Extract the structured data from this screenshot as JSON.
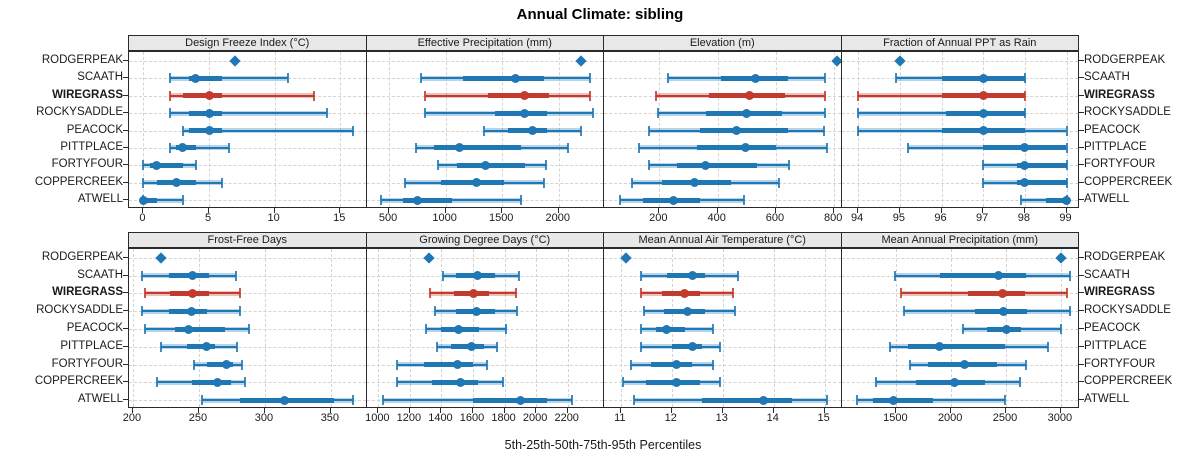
{
  "title": "Annual Climate: sibling",
  "caption": "5th-25th-50th-75th-95th Percentiles",
  "colors": {
    "site": "#1f77b4",
    "highlight": "#c23b2e",
    "strip_bg": "#e8e8e8",
    "grid": "#d4d4d4",
    "border": "#2a2a2a"
  },
  "chart_data": {
    "type": "dotplot",
    "layout": "2 rows x 4 cols lattice of percentile whisker plots",
    "title": "Annual Climate: sibling",
    "caption": "5th-25th-50th-75th-95th Percentiles",
    "legend_position": "none",
    "grid": "dashed",
    "sites": [
      "RODGERPEAK",
      "SCAATH",
      "WIREGRASS",
      "ROCKYSADDLE",
      "PEACOCK",
      "PITTPLACE",
      "FORTYFOUR",
      "COPPERCREEK",
      "ATWELL"
    ],
    "highlight_site": "WIREGRASS",
    "single_point_site": "RODGERPEAK",
    "value_semantics": "arrays of 5 numbers are [p5,p25,p50,p75,p95]; single-element arrays are a lone observed value drawn as a diamond",
    "panels": [
      {
        "title": "Design Freeze Index (°C)",
        "ticks": [
          0,
          5,
          10,
          15
        ],
        "xlim": [
          -1.1,
          17
        ],
        "values": [
          [
            7
          ],
          [
            2,
            3.5,
            4,
            6,
            11
          ],
          [
            2,
            3,
            5,
            6,
            13
          ],
          [
            2,
            3.5,
            5,
            6,
            14
          ],
          [
            3,
            3.5,
            5,
            6,
            16
          ],
          [
            2,
            2.5,
            3,
            4,
            6.5
          ],
          [
            0,
            0.5,
            1,
            3,
            4
          ],
          [
            0,
            1,
            2.5,
            4,
            6
          ],
          [
            0,
            0,
            0,
            1,
            3
          ]
        ]
      },
      {
        "title": "Effective Precipitation (mm)",
        "ticks": [
          500,
          1000,
          1500,
          2000
        ],
        "xlim": [
          300,
          2400
        ],
        "values": [
          [
            2200
          ],
          [
            780,
            1150,
            1620,
            1870,
            2280
          ],
          [
            820,
            1370,
            1700,
            1910,
            2280
          ],
          [
            820,
            1440,
            1700,
            1900,
            2300
          ],
          [
            1340,
            1550,
            1770,
            1900,
            2200
          ],
          [
            740,
            900,
            1120,
            1670,
            2080
          ],
          [
            930,
            1100,
            1350,
            1700,
            1890
          ],
          [
            640,
            960,
            1270,
            1520,
            1870
          ],
          [
            430,
            620,
            750,
            1060,
            1670
          ]
        ]
      },
      {
        "title": "Elevation (m)",
        "ticks": [
          200,
          400,
          600,
          800
        ],
        "xlim": [
          10,
          825
        ],
        "values": [
          [
            810
          ],
          [
            230,
            410,
            530,
            640,
            770
          ],
          [
            190,
            370,
            510,
            630,
            770
          ],
          [
            195,
            360,
            500,
            620,
            770
          ],
          [
            165,
            340,
            465,
            640,
            765
          ],
          [
            130,
            330,
            495,
            600,
            775
          ],
          [
            165,
            260,
            360,
            535,
            645
          ],
          [
            105,
            210,
            320,
            445,
            610
          ],
          [
            65,
            145,
            250,
            340,
            490
          ]
        ]
      },
      {
        "title": "Fraction of Annual PPT as Rain",
        "ticks": [
          94,
          95,
          96,
          97,
          98,
          99
        ],
        "xlim": [
          93.6,
          99.3
        ],
        "values": [
          [
            95
          ],
          [
            94.9,
            96,
            97,
            98,
            98
          ],
          [
            94,
            96,
            97,
            98,
            98
          ],
          [
            94,
            96.1,
            97,
            98,
            98
          ],
          [
            94,
            96,
            97,
            98,
            99
          ],
          [
            95.2,
            97,
            98,
            99,
            99
          ],
          [
            97,
            97.8,
            98,
            99,
            99
          ],
          [
            97,
            97.8,
            98,
            99,
            99
          ],
          [
            97.9,
            98.5,
            99,
            99,
            99
          ]
        ]
      },
      {
        "title": "Frost-Free Days",
        "ticks": [
          200,
          250,
          300,
          350
        ],
        "xlim": [
          197,
          377
        ],
        "values": [
          [
            221
          ],
          [
            207,
            227,
            245,
            258,
            278
          ],
          [
            209,
            228,
            245,
            258,
            281
          ],
          [
            207,
            227,
            244,
            256,
            281
          ],
          [
            209,
            232,
            242,
            270,
            288
          ],
          [
            221,
            241,
            256,
            262,
            279
          ],
          [
            246,
            256,
            271,
            276,
            283
          ],
          [
            218,
            245,
            264,
            274,
            285
          ],
          [
            252,
            281,
            315,
            352,
            367
          ]
        ]
      },
      {
        "title": "Growing Degree Days (°C)",
        "ticks": [
          1000,
          1200,
          1400,
          1600,
          1800,
          2000,
          2200
        ],
        "xlim": [
          925,
          2430
        ],
        "values": [
          [
            1320
          ],
          [
            1410,
            1490,
            1630,
            1740,
            1890
          ],
          [
            1330,
            1480,
            1600,
            1700,
            1870
          ],
          [
            1360,
            1490,
            1620,
            1740,
            1880
          ],
          [
            1300,
            1400,
            1510,
            1640,
            1810
          ],
          [
            1370,
            1460,
            1590,
            1670,
            1750
          ],
          [
            1120,
            1290,
            1500,
            1600,
            1690
          ],
          [
            1120,
            1340,
            1520,
            1630,
            1790
          ],
          [
            1030,
            1600,
            1900,
            2070,
            2230
          ]
        ]
      },
      {
        "title": "Mean Annual Air Temperature (°C)",
        "ticks": [
          11,
          12,
          13,
          14,
          15
        ],
        "xlim": [
          10.67,
          15.33
        ],
        "values": [
          [
            11.1
          ],
          [
            11.4,
            11.9,
            12.4,
            12.65,
            13.3
          ],
          [
            11.4,
            11.8,
            12.25,
            12.55,
            13.2
          ],
          [
            11.45,
            11.85,
            12.3,
            12.65,
            13.25
          ],
          [
            11.4,
            11.7,
            11.9,
            12.25,
            12.8
          ],
          [
            11.4,
            12,
            12.4,
            12.6,
            12.95
          ],
          [
            11.2,
            11.6,
            12.1,
            12.4,
            12.8
          ],
          [
            11.05,
            11.5,
            12.1,
            12.55,
            12.95
          ],
          [
            11.25,
            12.6,
            13.8,
            14.35,
            15.05
          ]
        ]
      },
      {
        "title": "Mean Annual Precipitation (mm)",
        "ticks": [
          1500,
          2000,
          2500,
          3000
        ],
        "xlim": [
          1000,
          3165
        ],
        "values": [
          [
            3000
          ],
          [
            1490,
            1900,
            2430,
            2680,
            3080
          ],
          [
            1540,
            2150,
            2470,
            2670,
            3060
          ],
          [
            1570,
            2220,
            2480,
            2690,
            3080
          ],
          [
            2110,
            2330,
            2500,
            2640,
            3000
          ],
          [
            1440,
            1610,
            1890,
            2490,
            2880
          ],
          [
            1620,
            1790,
            2120,
            2420,
            2680
          ],
          [
            1310,
            1680,
            2030,
            2310,
            2630
          ],
          [
            1140,
            1290,
            1470,
            1830,
            2490
          ]
        ]
      }
    ]
  }
}
